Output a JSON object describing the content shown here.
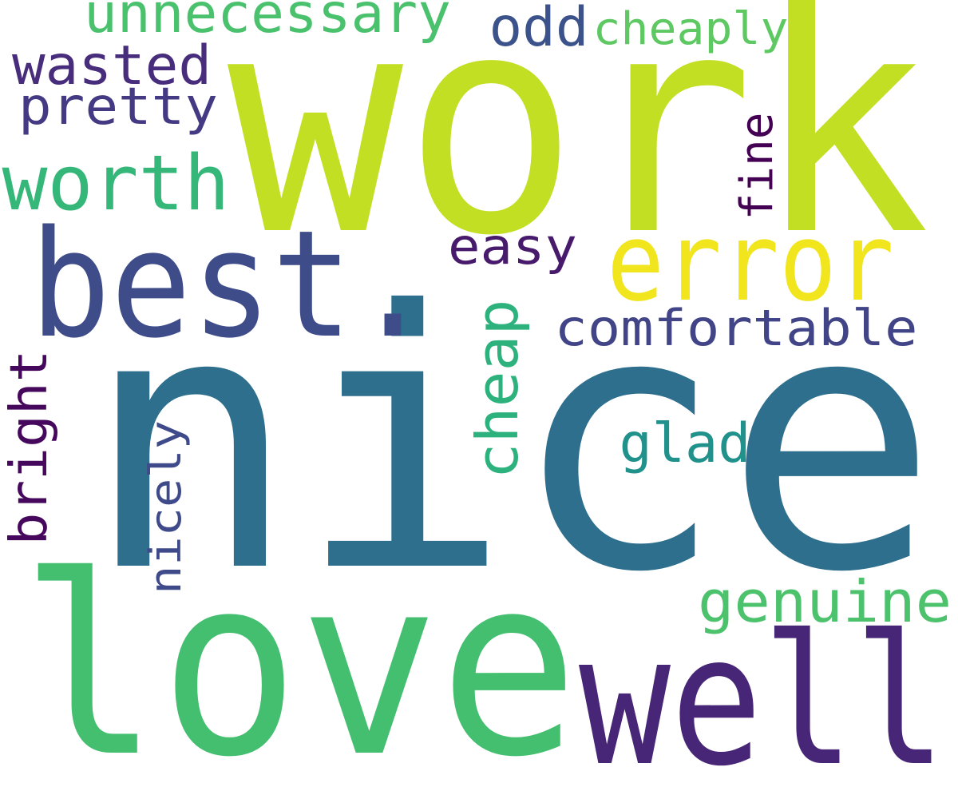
{
  "words": [
    {
      "id": "work",
      "text": "work",
      "color": "#c2df23"
    },
    {
      "id": "nice",
      "text": "nice",
      "color": "#2e6f8e"
    },
    {
      "id": "love",
      "text": "love",
      "color": "#44bf70"
    },
    {
      "id": "best",
      "text": "best.",
      "color": "#3e4c8a"
    },
    {
      "id": "well",
      "text": "well",
      "color": "#482677"
    },
    {
      "id": "error",
      "text": "error",
      "color": "#f1e51d"
    },
    {
      "id": "worth",
      "text": "worth",
      "color": "#35b779"
    },
    {
      "id": "unnecessary",
      "text": "unnecessary",
      "color": "#4ac16d"
    },
    {
      "id": "wasted",
      "text": "wasted",
      "color": "#472d7b"
    },
    {
      "id": "pretty",
      "text": "pretty",
      "color": "#443a83"
    },
    {
      "id": "odd",
      "text": "odd",
      "color": "#3b528b"
    },
    {
      "id": "cheaply",
      "text": "cheaply",
      "color": "#5ec962"
    },
    {
      "id": "fine",
      "text": "fine",
      "color": "#440154"
    },
    {
      "id": "easy",
      "text": "easy",
      "color": "#481a6c"
    },
    {
      "id": "comfortable",
      "text": "comfortable",
      "color": "#414487"
    },
    {
      "id": "cheap",
      "text": "cheap",
      "color": "#2db27d"
    },
    {
      "id": "glad",
      "text": "glad",
      "color": "#21918c"
    },
    {
      "id": "bright",
      "text": "bright",
      "color": "#46085c"
    },
    {
      "id": "nicely",
      "text": "nicely",
      "color": "#3e4a89"
    },
    {
      "id": "genuine",
      "text": "genuine",
      "color": "#4cc26c"
    }
  ]
}
